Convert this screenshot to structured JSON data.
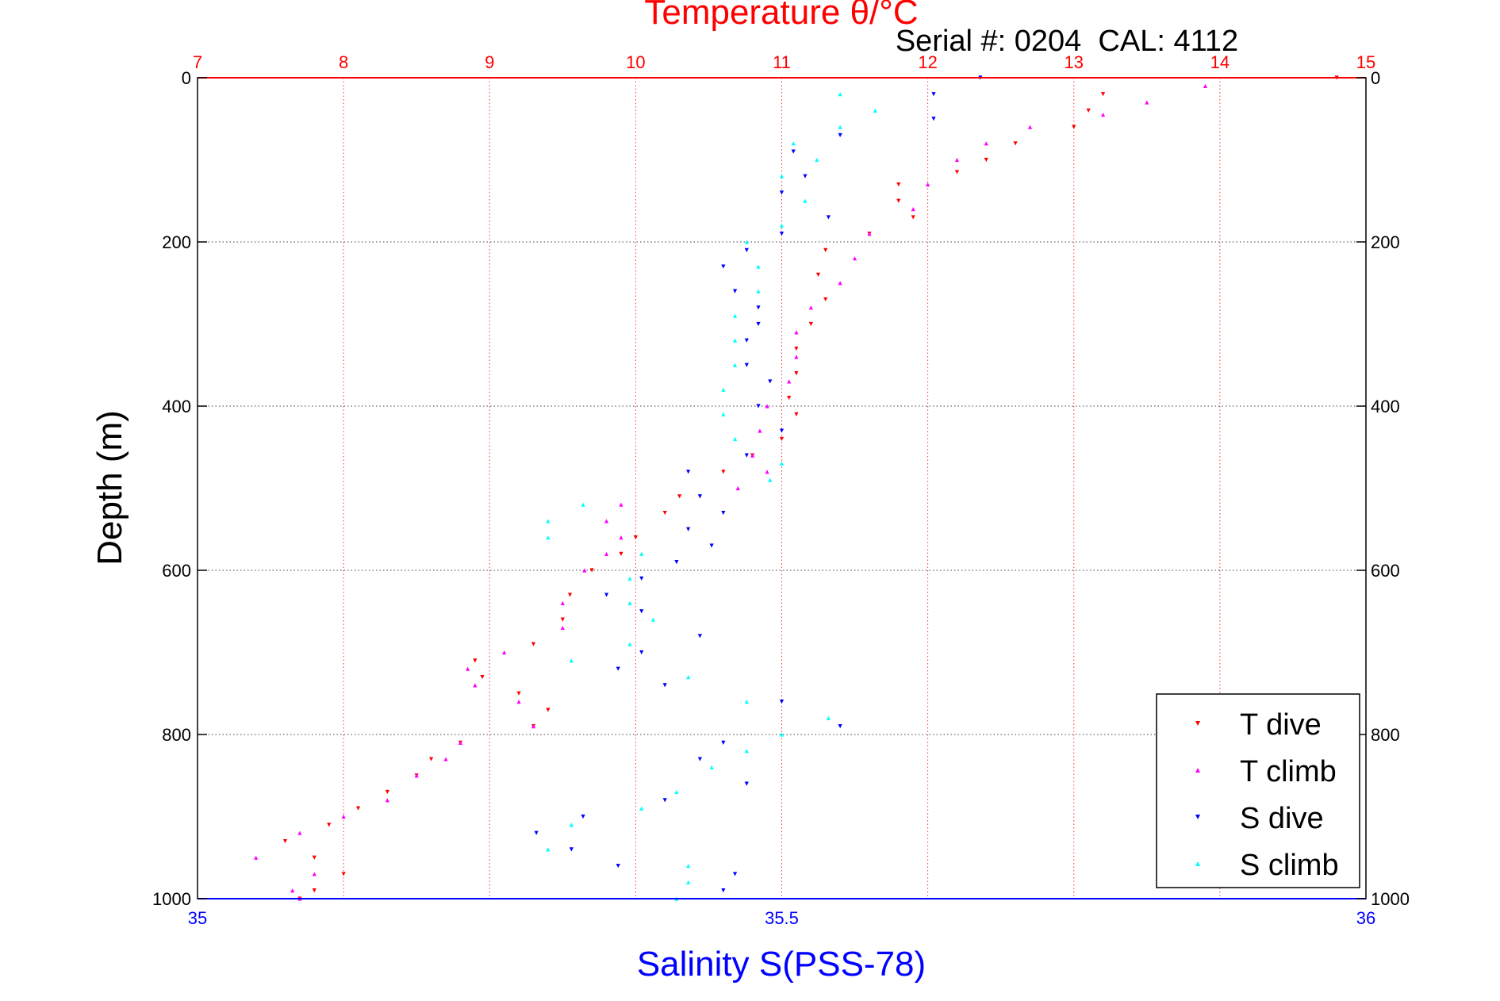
{
  "chart_data": {
    "type": "scatter",
    "title": "Temperature θ/°C",
    "annotation": "Serial #: 0204  CAL: 4112",
    "ylabel": "Depth (m)",
    "xlabel_bottom": "Salinity S(PSS-78)",
    "xlabel_top": "Temperature θ/°C",
    "ylim": [
      0,
      1000
    ],
    "y_reversed": true,
    "y_ticks": [
      0,
      200,
      400,
      600,
      800,
      1000
    ],
    "x_top": {
      "variable": "temperature",
      "lim": [
        7,
        15
      ],
      "ticks": [
        7,
        8,
        9,
        10,
        11,
        12,
        13,
        14,
        15
      ]
    },
    "x_bottom": {
      "variable": "salinity",
      "lim": [
        35,
        36
      ],
      "ticks": [
        "35",
        "35.5",
        "36"
      ],
      "tick_values": [
        35,
        35.5,
        36
      ]
    },
    "grid": true,
    "legend_position": "bottom-right",
    "colors": {
      "temperature_axis": "#ff0000",
      "salinity_axis": "#0000ff",
      "t_dive": "#ff0000",
      "t_climb": "#ff00ff",
      "s_dive": "#0000ff",
      "s_climb": "#00ffff"
    },
    "series": [
      {
        "name": "T dive",
        "axis": "temperature",
        "color": "#ff0000",
        "marker": "triangle-down",
        "points": [
          [
            14.8,
            0
          ],
          [
            13.2,
            20
          ],
          [
            13.1,
            40
          ],
          [
            13.0,
            60
          ],
          [
            12.6,
            80
          ],
          [
            12.4,
            100
          ],
          [
            12.2,
            115
          ],
          [
            11.8,
            130
          ],
          [
            11.8,
            150
          ],
          [
            11.9,
            170
          ],
          [
            11.6,
            190
          ],
          [
            11.3,
            210
          ],
          [
            11.25,
            240
          ],
          [
            11.3,
            270
          ],
          [
            11.2,
            300
          ],
          [
            11.1,
            330
          ],
          [
            11.1,
            360
          ],
          [
            11.05,
            390
          ],
          [
            11.1,
            410
          ],
          [
            11.0,
            440
          ],
          [
            10.8,
            460
          ],
          [
            10.6,
            480
          ],
          [
            10.3,
            510
          ],
          [
            10.2,
            530
          ],
          [
            10.0,
            560
          ],
          [
            9.9,
            580
          ],
          [
            9.7,
            600
          ],
          [
            9.55,
            630
          ],
          [
            9.5,
            660
          ],
          [
            9.3,
            690
          ],
          [
            8.9,
            710
          ],
          [
            8.95,
            730
          ],
          [
            9.2,
            750
          ],
          [
            9.4,
            770
          ],
          [
            9.3,
            790
          ],
          [
            8.8,
            810
          ],
          [
            8.6,
            830
          ],
          [
            8.5,
            850
          ],
          [
            8.3,
            870
          ],
          [
            8.1,
            890
          ],
          [
            7.9,
            910
          ],
          [
            7.6,
            930
          ],
          [
            7.8,
            950
          ],
          [
            8.0,
            970
          ],
          [
            7.8,
            990
          ],
          [
            7.7,
            1000
          ]
        ]
      },
      {
        "name": "T climb",
        "axis": "temperature",
        "color": "#ff00ff",
        "marker": "triangle-up",
        "points": [
          [
            13.9,
            10
          ],
          [
            13.5,
            30
          ],
          [
            13.2,
            45
          ],
          [
            12.7,
            60
          ],
          [
            12.4,
            80
          ],
          [
            12.2,
            100
          ],
          [
            12.0,
            130
          ],
          [
            11.9,
            160
          ],
          [
            11.6,
            190
          ],
          [
            11.5,
            220
          ],
          [
            11.4,
            250
          ],
          [
            11.2,
            280
          ],
          [
            11.1,
            310
          ],
          [
            11.1,
            340
          ],
          [
            11.05,
            370
          ],
          [
            10.9,
            400
          ],
          [
            10.85,
            430
          ],
          [
            10.8,
            460
          ],
          [
            10.9,
            480
          ],
          [
            10.7,
            500
          ],
          [
            9.9,
            520
          ],
          [
            9.8,
            540
          ],
          [
            9.9,
            560
          ],
          [
            9.8,
            580
          ],
          [
            9.65,
            600
          ],
          [
            9.5,
            640
          ],
          [
            9.5,
            670
          ],
          [
            9.1,
            700
          ],
          [
            8.85,
            720
          ],
          [
            8.9,
            740
          ],
          [
            9.2,
            760
          ],
          [
            9.3,
            790
          ],
          [
            8.8,
            810
          ],
          [
            8.7,
            830
          ],
          [
            8.5,
            850
          ],
          [
            8.3,
            880
          ],
          [
            8.0,
            900
          ],
          [
            7.7,
            920
          ],
          [
            7.4,
            950
          ],
          [
            7.8,
            970
          ],
          [
            7.65,
            990
          ],
          [
            7.7,
            1000
          ]
        ]
      },
      {
        "name": "S dive",
        "axis": "salinity",
        "color": "#0000ff",
        "marker": "triangle-down",
        "points": [
          [
            35.67,
            0
          ],
          [
            35.63,
            20
          ],
          [
            35.63,
            50
          ],
          [
            35.55,
            70
          ],
          [
            35.51,
            90
          ],
          [
            35.52,
            120
          ],
          [
            35.5,
            140
          ],
          [
            35.54,
            170
          ],
          [
            35.5,
            190
          ],
          [
            35.47,
            210
          ],
          [
            35.45,
            230
          ],
          [
            35.46,
            260
          ],
          [
            35.48,
            280
          ],
          [
            35.48,
            300
          ],
          [
            35.47,
            320
          ],
          [
            35.47,
            350
          ],
          [
            35.49,
            370
          ],
          [
            35.48,
            400
          ],
          [
            35.5,
            430
          ],
          [
            35.47,
            460
          ],
          [
            35.42,
            480
          ],
          [
            35.43,
            510
          ],
          [
            35.45,
            530
          ],
          [
            35.42,
            550
          ],
          [
            35.44,
            570
          ],
          [
            35.41,
            590
          ],
          [
            35.38,
            610
          ],
          [
            35.35,
            630
          ],
          [
            35.38,
            650
          ],
          [
            35.43,
            680
          ],
          [
            35.38,
            700
          ],
          [
            35.36,
            720
          ],
          [
            35.4,
            740
          ],
          [
            35.5,
            760
          ],
          [
            35.55,
            790
          ],
          [
            35.45,
            810
          ],
          [
            35.43,
            830
          ],
          [
            35.47,
            860
          ],
          [
            35.4,
            880
          ],
          [
            35.33,
            900
          ],
          [
            35.29,
            920
          ],
          [
            35.32,
            940
          ],
          [
            35.36,
            960
          ],
          [
            35.46,
            970
          ],
          [
            35.45,
            990
          ]
        ]
      },
      {
        "name": "S climb",
        "axis": "salinity",
        "color": "#00ffff",
        "marker": "triangle-up",
        "points": [
          [
            35.55,
            20
          ],
          [
            35.58,
            40
          ],
          [
            35.55,
            60
          ],
          [
            35.51,
            80
          ],
          [
            35.53,
            100
          ],
          [
            35.5,
            120
          ],
          [
            35.52,
            150
          ],
          [
            35.5,
            180
          ],
          [
            35.47,
            200
          ],
          [
            35.48,
            230
          ],
          [
            35.48,
            260
          ],
          [
            35.46,
            290
          ],
          [
            35.46,
            320
          ],
          [
            35.46,
            350
          ],
          [
            35.45,
            380
          ],
          [
            35.45,
            410
          ],
          [
            35.46,
            440
          ],
          [
            35.5,
            470
          ],
          [
            35.49,
            490
          ],
          [
            35.33,
            520
          ],
          [
            35.3,
            540
          ],
          [
            35.3,
            560
          ],
          [
            35.38,
            580
          ],
          [
            35.37,
            610
          ],
          [
            35.37,
            640
          ],
          [
            35.39,
            660
          ],
          [
            35.37,
            690
          ],
          [
            35.32,
            710
          ],
          [
            35.42,
            730
          ],
          [
            35.47,
            760
          ],
          [
            35.54,
            780
          ],
          [
            35.5,
            800
          ],
          [
            35.47,
            820
          ],
          [
            35.44,
            840
          ],
          [
            35.41,
            870
          ],
          [
            35.38,
            890
          ],
          [
            35.32,
            910
          ],
          [
            35.3,
            940
          ],
          [
            35.42,
            960
          ],
          [
            35.42,
            980
          ],
          [
            35.41,
            1000
          ]
        ]
      }
    ]
  }
}
